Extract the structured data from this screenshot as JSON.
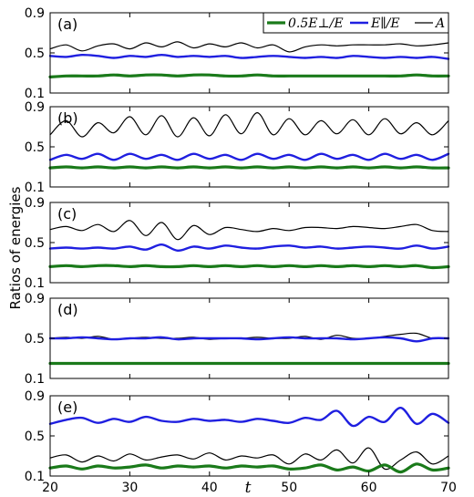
{
  "chart_data": {
    "type": "line",
    "ylabel": "Ratios of energies",
    "xlabel": "t",
    "xlim": [
      20,
      70
    ],
    "ylim": [
      0.1,
      0.9
    ],
    "xticks": [
      "20",
      "30",
      "40",
      "50",
      "60",
      "70"
    ],
    "yticks": [
      "0.1",
      "0.5",
      "0.9"
    ],
    "legend": {
      "placement": "top-right of panel (a)",
      "entries": [
        "0.5E⊥/E",
        "E∥/E",
        "A"
      ]
    },
    "series_styles": [
      {
        "key": "perp",
        "color": "#1a7a1a",
        "width": 3.2
      },
      {
        "key": "par",
        "color": "#1f1fe0",
        "width": 2.4
      },
      {
        "key": "A",
        "color": "#000000",
        "width": 1.2
      }
    ],
    "panels": [
      {
        "label": "(a)",
        "x": [
          20,
          22,
          24,
          26,
          28,
          30,
          32,
          34,
          36,
          38,
          40,
          42,
          44,
          46,
          48,
          50,
          52,
          54,
          56,
          58,
          60,
          62,
          64,
          66,
          68,
          70
        ],
        "series": [
          {
            "key": "perp",
            "values": [
              0.26,
              0.27,
              0.27,
              0.27,
              0.28,
              0.27,
              0.28,
              0.28,
              0.27,
              0.28,
              0.28,
              0.27,
              0.27,
              0.28,
              0.27,
              0.27,
              0.27,
              0.27,
              0.27,
              0.27,
              0.27,
              0.27,
              0.27,
              0.28,
              0.27,
              0.27
            ]
          },
          {
            "key": "par",
            "values": [
              0.47,
              0.46,
              0.48,
              0.47,
              0.45,
              0.47,
              0.46,
              0.48,
              0.46,
              0.47,
              0.46,
              0.47,
              0.45,
              0.46,
              0.47,
              0.46,
              0.45,
              0.46,
              0.45,
              0.47,
              0.46,
              0.45,
              0.46,
              0.45,
              0.46,
              0.44
            ]
          },
          {
            "key": "A",
            "values": [
              0.54,
              0.58,
              0.52,
              0.57,
              0.59,
              0.54,
              0.6,
              0.56,
              0.61,
              0.55,
              0.59,
              0.56,
              0.6,
              0.55,
              0.58,
              0.51,
              0.56,
              0.58,
              0.57,
              0.58,
              0.58,
              0.58,
              0.59,
              0.57,
              0.58,
              0.6
            ]
          }
        ]
      },
      {
        "label": "(b)",
        "x": [
          20,
          22,
          24,
          26,
          28,
          30,
          32,
          34,
          36,
          38,
          40,
          42,
          44,
          46,
          48,
          50,
          52,
          54,
          56,
          58,
          60,
          62,
          64,
          66,
          68,
          70
        ],
        "series": [
          {
            "key": "perp",
            "values": [
              0.29,
              0.3,
              0.29,
              0.3,
              0.29,
              0.3,
              0.29,
              0.3,
              0.29,
              0.3,
              0.29,
              0.3,
              0.29,
              0.3,
              0.29,
              0.3,
              0.29,
              0.3,
              0.29,
              0.3,
              0.29,
              0.3,
              0.29,
              0.3,
              0.29,
              0.29
            ]
          },
          {
            "key": "par",
            "values": [
              0.37,
              0.42,
              0.38,
              0.43,
              0.37,
              0.43,
              0.38,
              0.42,
              0.37,
              0.43,
              0.38,
              0.42,
              0.37,
              0.43,
              0.38,
              0.42,
              0.37,
              0.43,
              0.38,
              0.42,
              0.37,
              0.43,
              0.38,
              0.42,
              0.37,
              0.43
            ]
          },
          {
            "key": "A",
            "values": [
              0.62,
              0.76,
              0.6,
              0.74,
              0.64,
              0.8,
              0.62,
              0.81,
              0.6,
              0.79,
              0.61,
              0.82,
              0.63,
              0.84,
              0.62,
              0.78,
              0.62,
              0.76,
              0.63,
              0.77,
              0.62,
              0.78,
              0.63,
              0.74,
              0.62,
              0.76
            ]
          }
        ]
      },
      {
        "label": "(c)",
        "x": [
          20,
          22,
          24,
          26,
          28,
          30,
          32,
          34,
          36,
          38,
          40,
          42,
          44,
          46,
          48,
          50,
          52,
          54,
          56,
          58,
          60,
          62,
          64,
          66,
          68,
          70
        ],
        "series": [
          {
            "key": "perp",
            "values": [
              0.26,
              0.27,
              0.26,
              0.27,
              0.27,
              0.26,
              0.27,
              0.26,
              0.26,
              0.27,
              0.26,
              0.27,
              0.26,
              0.27,
              0.26,
              0.27,
              0.26,
              0.27,
              0.26,
              0.27,
              0.26,
              0.27,
              0.26,
              0.27,
              0.25,
              0.26
            ]
          },
          {
            "key": "par",
            "values": [
              0.44,
              0.45,
              0.44,
              0.45,
              0.44,
              0.46,
              0.43,
              0.48,
              0.42,
              0.46,
              0.44,
              0.47,
              0.45,
              0.44,
              0.46,
              0.47,
              0.45,
              0.46,
              0.44,
              0.45,
              0.46,
              0.45,
              0.44,
              0.47,
              0.44,
              0.46
            ]
          },
          {
            "key": "A",
            "values": [
              0.63,
              0.66,
              0.62,
              0.68,
              0.61,
              0.72,
              0.57,
              0.7,
              0.53,
              0.67,
              0.58,
              0.65,
              0.63,
              0.61,
              0.64,
              0.62,
              0.65,
              0.65,
              0.64,
              0.66,
              0.65,
              0.64,
              0.66,
              0.68,
              0.62,
              0.61
            ]
          }
        ]
      },
      {
        "label": "(d)",
        "x": [
          20,
          22,
          24,
          26,
          28,
          30,
          32,
          34,
          36,
          38,
          40,
          42,
          44,
          46,
          48,
          50,
          52,
          54,
          56,
          58,
          60,
          62,
          64,
          66,
          68,
          70
        ],
        "series": [
          {
            "key": "perp",
            "values": [
              0.25,
              0.25,
              0.25,
              0.25,
              0.25,
              0.25,
              0.25,
              0.25,
              0.25,
              0.25,
              0.25,
              0.25,
              0.25,
              0.25,
              0.25,
              0.25,
              0.25,
              0.25,
              0.25,
              0.25,
              0.25,
              0.25,
              0.25,
              0.25,
              0.25,
              0.25
            ]
          },
          {
            "key": "par",
            "values": [
              0.5,
              0.5,
              0.51,
              0.5,
              0.49,
              0.5,
              0.5,
              0.51,
              0.49,
              0.5,
              0.5,
              0.5,
              0.5,
              0.49,
              0.5,
              0.51,
              0.5,
              0.5,
              0.5,
              0.49,
              0.5,
              0.51,
              0.5,
              0.47,
              0.5,
              0.5
            ]
          },
          {
            "key": "A",
            "values": [
              0.5,
              0.51,
              0.5,
              0.52,
              0.49,
              0.5,
              0.51,
              0.5,
              0.5,
              0.51,
              0.49,
              0.5,
              0.5,
              0.51,
              0.5,
              0.5,
              0.52,
              0.49,
              0.53,
              0.5,
              0.5,
              0.52,
              0.54,
              0.55,
              0.5,
              0.5
            ]
          }
        ]
      },
      {
        "label": "(e)",
        "x": [
          20,
          22,
          24,
          26,
          28,
          30,
          32,
          34,
          36,
          38,
          40,
          42,
          44,
          46,
          48,
          50,
          52,
          54,
          56,
          58,
          60,
          62,
          64,
          66,
          68,
          70
        ],
        "series": [
          {
            "key": "perp",
            "values": [
              0.18,
              0.2,
              0.17,
              0.2,
              0.18,
              0.19,
              0.21,
              0.18,
              0.2,
              0.19,
              0.2,
              0.18,
              0.2,
              0.19,
              0.2,
              0.17,
              0.18,
              0.21,
              0.16,
              0.19,
              0.15,
              0.21,
              0.14,
              0.22,
              0.16,
              0.18
            ]
          },
          {
            "key": "par",
            "values": [
              0.62,
              0.66,
              0.68,
              0.63,
              0.67,
              0.64,
              0.69,
              0.65,
              0.64,
              0.67,
              0.65,
              0.66,
              0.64,
              0.67,
              0.65,
              0.63,
              0.68,
              0.66,
              0.75,
              0.6,
              0.69,
              0.64,
              0.78,
              0.62,
              0.72,
              0.63
            ]
          },
          {
            "key": "A",
            "values": [
              0.28,
              0.31,
              0.24,
              0.3,
              0.25,
              0.32,
              0.26,
              0.29,
              0.31,
              0.27,
              0.33,
              0.26,
              0.3,
              0.28,
              0.31,
              0.22,
              0.32,
              0.26,
              0.36,
              0.23,
              0.38,
              0.17,
              0.26,
              0.34,
              0.22,
              0.3
            ]
          }
        ]
      }
    ]
  }
}
